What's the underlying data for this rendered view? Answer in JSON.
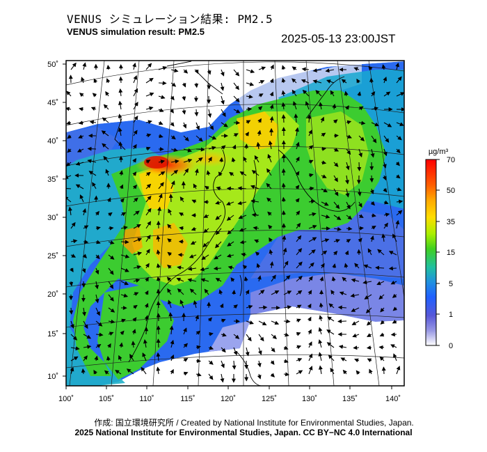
{
  "title_jp": "VENUS シミュレーション結果: PM2.5",
  "title_en": "VENUS simulation result: PM2.5",
  "timestamp": "2025-05-13 23:00JST",
  "colorbar": {
    "unit": "µg/m³",
    "ticks": [
      "70",
      "50",
      "35",
      "15",
      "5",
      "1",
      "0"
    ],
    "colors": [
      "#ff0000",
      "#ff8800",
      "#ffcc00",
      "#88e000",
      "#22cc33",
      "#22aacc",
      "#1e64ff",
      "#5050d8",
      "#9090e0",
      "#ffffff"
    ]
  },
  "axes": {
    "lon_labels": [
      "100˚",
      "105˚",
      "110˚",
      "115˚",
      "120˚",
      "125˚",
      "130˚",
      "135˚",
      "140˚"
    ],
    "lat_labels": [
      "50˚",
      "45˚",
      "40˚",
      "35˚",
      "30˚",
      "25˚",
      "20˚",
      "15˚",
      "10˚"
    ]
  },
  "credit_line1": "作成: 国立環境研究所 / Created by National Institute for Environmental Studies, Japan.",
  "credit_line2": "2025 National Institute for Environmental Studies, Japan. CC BY−NC 4.0 International"
}
